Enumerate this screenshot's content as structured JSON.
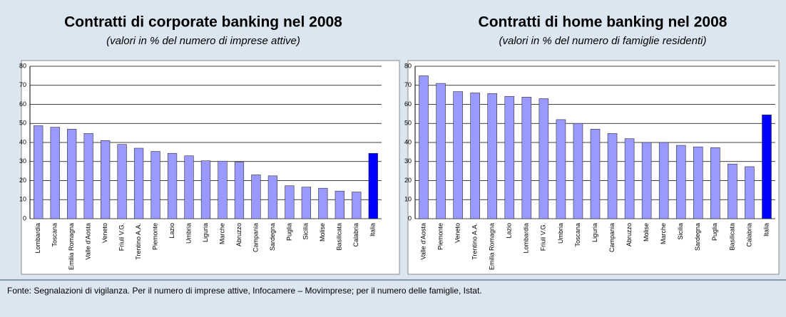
{
  "chart_data": [
    {
      "type": "bar",
      "title": "Contratti di corporate banking nel 2008",
      "subtitle": "(valori in % del numero di imprese attive)",
      "categories": [
        "Lombardia",
        "Toscana",
        "Emilia Romagna",
        "Valle d'Aosta",
        "Veneto",
        "Friuli V.G.",
        "Trentino A.A.",
        "Piemonte",
        "Lazio",
        "Umbria",
        "Liguria",
        "Marche",
        "Abruzzo",
        "Campania",
        "Sardegna",
        "Puglia",
        "Sicilia",
        "Molise",
        "Basilicata",
        "Calabria",
        "Italia"
      ],
      "values": [
        48.8,
        48,
        47,
        44.7,
        41,
        39,
        37,
        35.3,
        34.3,
        33,
        30.4,
        30.2,
        29.7,
        23,
        22.5,
        17.3,
        16.6,
        16,
        14.5,
        14,
        34.3
      ],
      "colors": [
        "#9999ff",
        "#9999ff",
        "#9999ff",
        "#9999ff",
        "#9999ff",
        "#9999ff",
        "#9999ff",
        "#9999ff",
        "#9999ff",
        "#9999ff",
        "#9999ff",
        "#9999ff",
        "#9999ff",
        "#9999ff",
        "#9999ff",
        "#9999ff",
        "#9999ff",
        "#9999ff",
        "#9999ff",
        "#9999ff",
        "#0000ff"
      ],
      "ylim": [
        0,
        80
      ],
      "yticks": [
        0,
        10,
        20,
        30,
        40,
        50,
        60,
        70,
        80
      ],
      "grid": true
    },
    {
      "type": "bar",
      "title": "Contratti di home banking nel 2008",
      "subtitle": "(valori in % del numero di famiglie residenti)",
      "categories": [
        "Valle d'Aosta",
        "Piemonte",
        "Veneto",
        "Trentino A.A.",
        "Emilia Romagna",
        "Lazio",
        "Lombardia",
        "Friuli V.G.",
        "Umbria",
        "Toscana",
        "Liguria",
        "Campania",
        "Abruzzo",
        "Molise",
        "Marche",
        "Sicilia",
        "Sardegna",
        "Puglia",
        "Basilicata",
        "Calabria",
        "Italia"
      ],
      "values": [
        75,
        71,
        66.7,
        66,
        65.7,
        64.2,
        63.8,
        63,
        52,
        50,
        47,
        44.7,
        42,
        40,
        40,
        38.5,
        37.7,
        37.3,
        28.7,
        27.3,
        54.5
      ],
      "colors": [
        "#9999ff",
        "#9999ff",
        "#9999ff",
        "#9999ff",
        "#9999ff",
        "#9999ff",
        "#9999ff",
        "#9999ff",
        "#9999ff",
        "#9999ff",
        "#9999ff",
        "#9999ff",
        "#9999ff",
        "#9999ff",
        "#9999ff",
        "#9999ff",
        "#9999ff",
        "#9999ff",
        "#9999ff",
        "#9999ff",
        "#0000ff"
      ],
      "ylim": [
        0,
        80
      ],
      "yticks": [
        0,
        10,
        20,
        30,
        40,
        50,
        60,
        70,
        80
      ],
      "grid": true
    }
  ],
  "footer": "Fonte: Segnalazioni di vigilanza. Per il numero di imprese attive, Infocamere – Movimprese; per il numero delle famiglie, Istat."
}
